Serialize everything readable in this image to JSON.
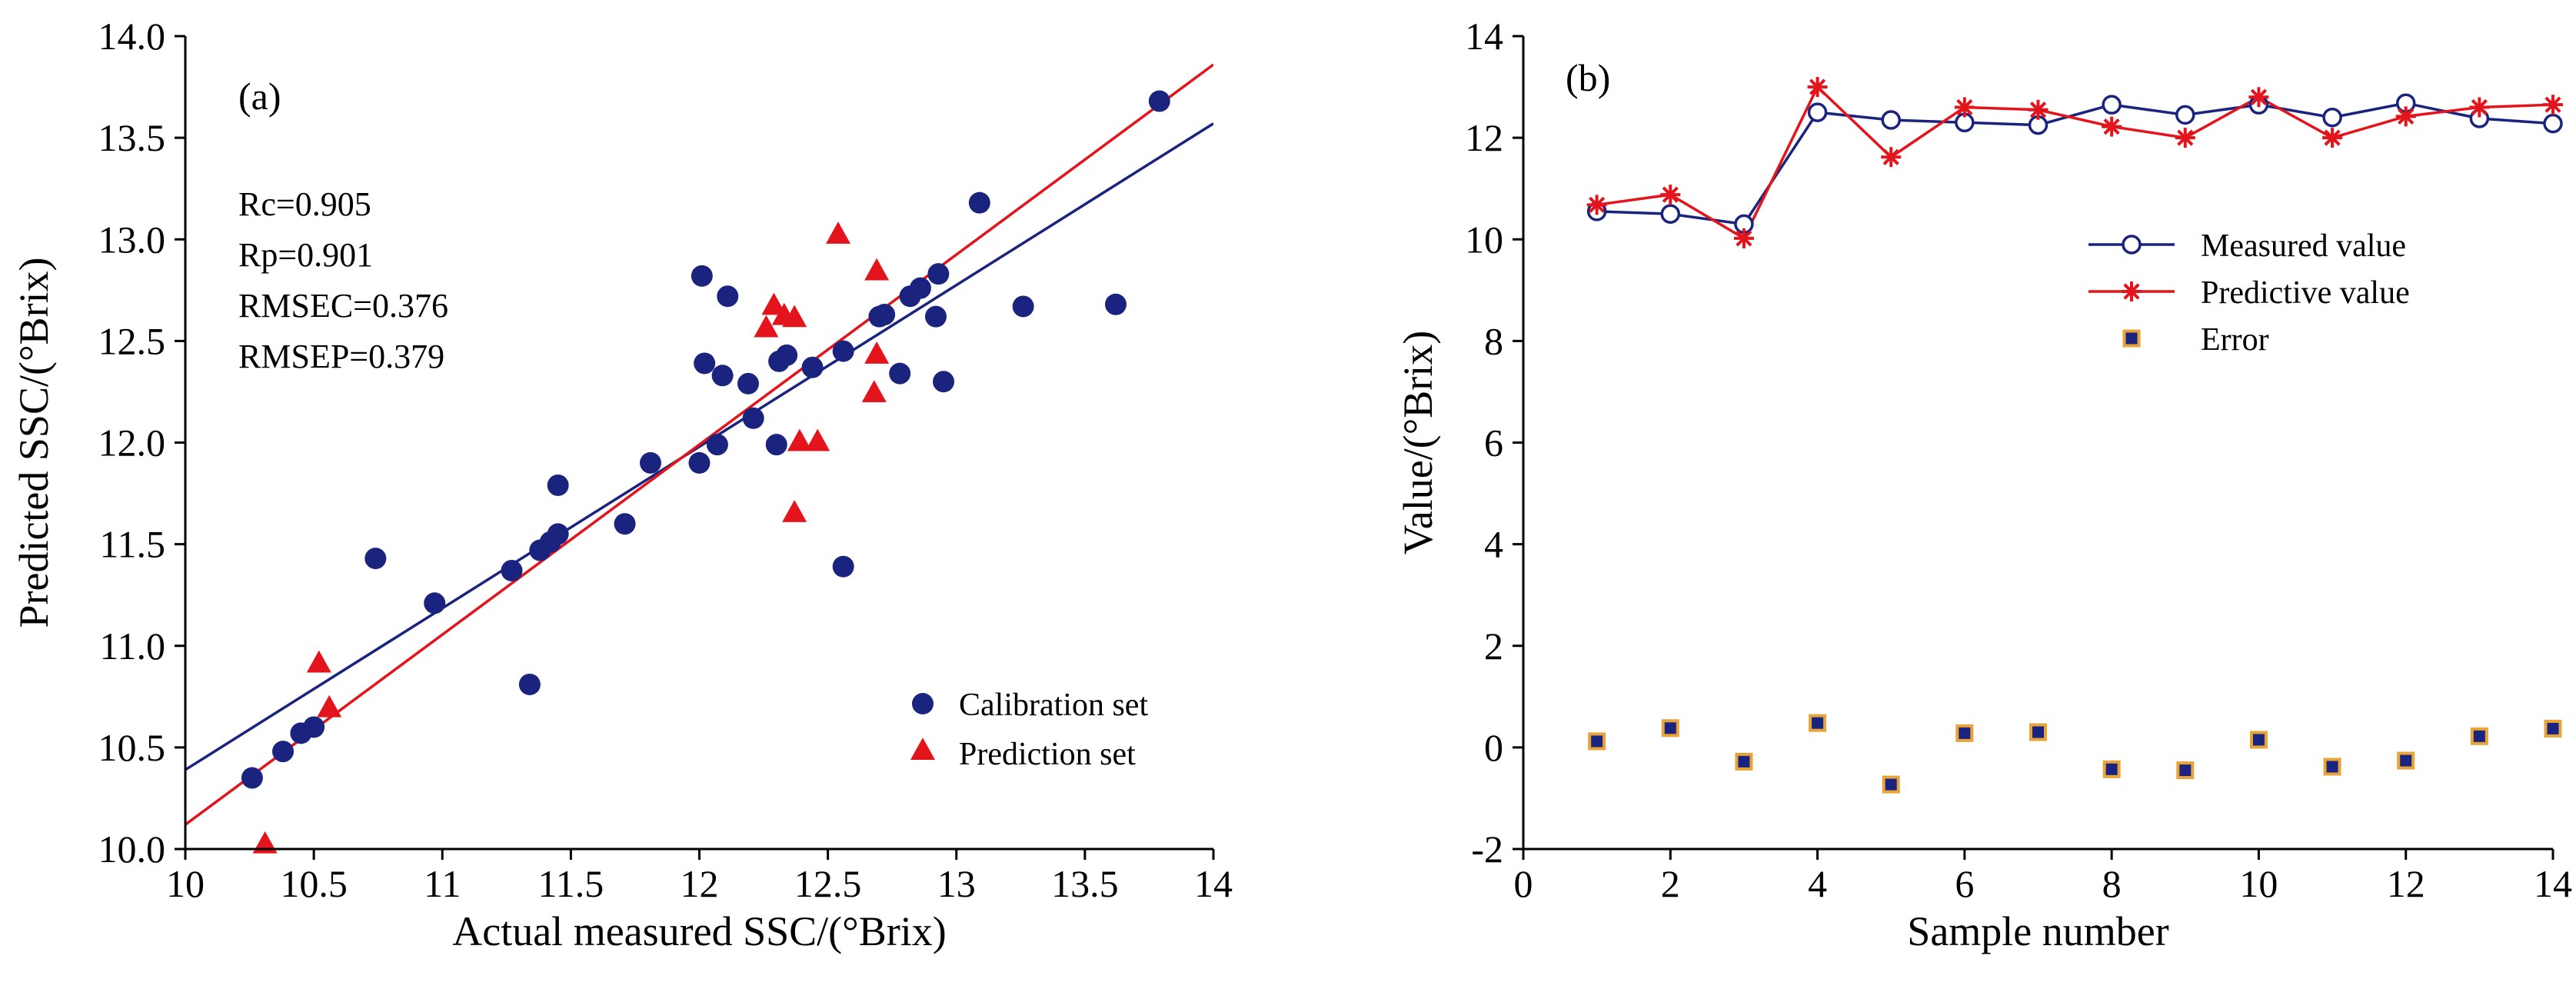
{
  "chart_data": [
    {
      "type": "scatter",
      "panel_label": "(a)",
      "xlabel": "Actual measured SSC/(°Brix)",
      "ylabel": "Predicted SSC/(°Brix)",
      "xlim": [
        10,
        14
      ],
      "ylim": [
        10,
        14
      ],
      "xticks": [
        10,
        10.5,
        11,
        11.5,
        12,
        12.5,
        13,
        13.5,
        14
      ],
      "xtick_labels": [
        "10",
        "10.5",
        "11",
        "11.5",
        "12",
        "12.5",
        "13",
        "13.5",
        "14"
      ],
      "yticks": [
        10,
        10.5,
        11,
        11.5,
        12,
        12.5,
        13,
        13.5,
        14
      ],
      "ytick_labels": [
        "10.0",
        "10.5",
        "11.0",
        "11.5",
        "12.0",
        "12.5",
        "13.0",
        "13.5",
        "14.0"
      ],
      "grid": false,
      "annotations": [
        "Rc=0.905",
        "Rp=0.901",
        "RMSEC=0.376",
        "RMSEP=0.379"
      ],
      "legend_position": "bottom-right",
      "series": [
        {
          "name": "Calibration set",
          "marker": "circle",
          "color": "#1a237e",
          "x": [
            10.26,
            10.38,
            10.45,
            10.5,
            10.74,
            10.97,
            11.27,
            11.34,
            11.38,
            11.42,
            11.45,
            11.45,
            11.71,
            11.81,
            12.0,
            12.01,
            12.02,
            12.07,
            12.09,
            12.11,
            12.19,
            12.21,
            12.3,
            12.31,
            12.34,
            12.44,
            12.56,
            12.56,
            12.7,
            12.72,
            12.78,
            12.82,
            12.86,
            12.92,
            12.93,
            12.95,
            13.09,
            13.26,
            13.62,
            13.79
          ],
          "y": [
            10.35,
            10.48,
            10.57,
            10.6,
            11.43,
            11.21,
            11.37,
            10.81,
            11.47,
            11.51,
            11.55,
            11.79,
            11.6,
            11.9,
            11.9,
            12.82,
            12.39,
            11.99,
            12.33,
            12.72,
            12.29,
            12.12,
            11.99,
            12.4,
            12.43,
            12.37,
            12.45,
            11.39,
            12.62,
            12.63,
            12.34,
            12.72,
            12.76,
            12.62,
            12.83,
            12.3,
            13.18,
            12.67,
            12.68,
            13.68
          ]
        },
        {
          "name": "Prediction set",
          "marker": "triangle",
          "color": "#e3141b",
          "x": [
            10.31,
            10.52,
            10.56,
            12.26,
            12.29,
            12.33,
            12.37,
            12.37,
            12.39,
            12.46,
            12.54,
            12.68,
            12.69,
            12.69
          ],
          "y": [
            10.02,
            10.91,
            10.69,
            12.56,
            12.67,
            12.62,
            12.61,
            11.65,
            12.0,
            12.0,
            13.02,
            12.24,
            12.43,
            12.84
          ]
        }
      ],
      "fit_lines": [
        {
          "series": "Calibration set",
          "color": "#1a237e",
          "x": [
            10,
            14
          ],
          "y": [
            10.39,
            13.57
          ]
        },
        {
          "series": "Prediction set",
          "color": "#e3141b",
          "x": [
            10,
            14
          ],
          "y": [
            10.12,
            13.86
          ]
        }
      ]
    },
    {
      "type": "line",
      "panel_label": "(b)",
      "xlabel": "Sample number",
      "ylabel": "Value/(°Brix)",
      "xlim": [
        0,
        14
      ],
      "ylim": [
        -2,
        14
      ],
      "xticks": [
        0,
        2,
        4,
        6,
        8,
        10,
        12,
        14
      ],
      "xtick_labels": [
        "0",
        "2",
        "4",
        "6",
        "8",
        "10",
        "12",
        "14"
      ],
      "yticks": [
        -2,
        0,
        2,
        4,
        6,
        8,
        10,
        12,
        14
      ],
      "ytick_labels": [
        "-2",
        "0",
        "2",
        "4",
        "6",
        "8",
        "10",
        "12",
        "14"
      ],
      "grid": false,
      "legend_position": "top-right",
      "x": [
        1,
        2,
        3,
        4,
        5,
        6,
        7,
        8,
        9,
        10,
        11,
        12,
        13,
        14
      ],
      "series": [
        {
          "name": "Measured value",
          "marker": "open-circle",
          "color": "#1a237e",
          "values": [
            10.55,
            10.5,
            10.3,
            12.5,
            12.35,
            12.3,
            12.25,
            12.65,
            12.45,
            12.65,
            12.4,
            12.68,
            12.38,
            12.28
          ]
        },
        {
          "name": "Predictive value",
          "marker": "asterisk",
          "color": "#e3141b",
          "values": [
            10.68,
            10.88,
            10.02,
            13.0,
            11.62,
            12.6,
            12.55,
            12.22,
            12.0,
            12.8,
            12.0,
            12.42,
            12.6,
            12.65
          ]
        },
        {
          "name": "Error",
          "marker": "square",
          "color": "#1a237e",
          "edge_color": "#e8a33a",
          "line": false,
          "values": [
            0.12,
            0.38,
            -0.28,
            0.48,
            -0.73,
            0.28,
            0.3,
            -0.43,
            -0.45,
            0.15,
            -0.38,
            -0.26,
            0.22,
            0.37
          ]
        }
      ]
    }
  ]
}
